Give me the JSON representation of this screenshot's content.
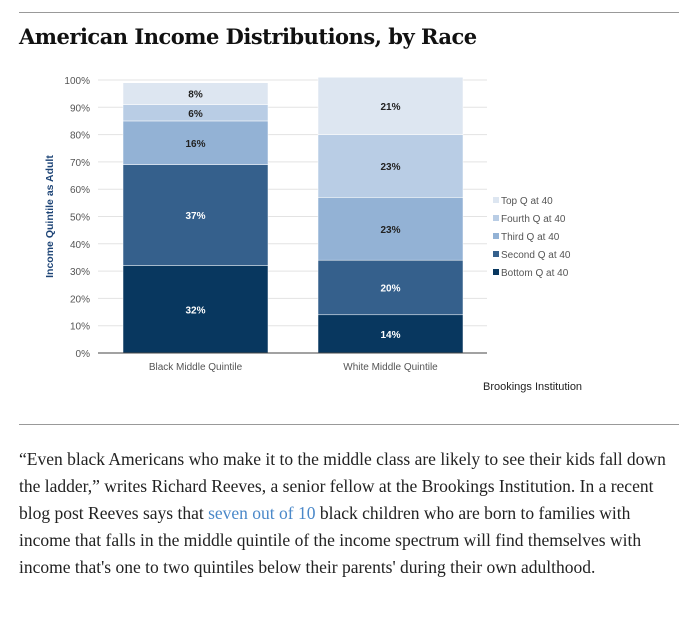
{
  "title": "American Income Distributions, by Race",
  "chart_data": {
    "type": "bar",
    "stacked": true,
    "ylabel": "Income Quintile as Adult",
    "ylim": [
      0,
      100
    ],
    "yticks": [
      "0%",
      "10%",
      "20%",
      "30%",
      "40%",
      "50%",
      "60%",
      "70%",
      "80%",
      "90%",
      "100%"
    ],
    "categories": [
      "Black Middle Quintile",
      "White Middle Quintile"
    ],
    "series": [
      {
        "name": "Bottom Q at 40",
        "color": "#08375f",
        "values": [
          32,
          14
        ],
        "labels": [
          "32%",
          "14%"
        ]
      },
      {
        "name": "Second Q at 40",
        "color": "#35608c",
        "values": [
          37,
          20
        ],
        "labels": [
          "37%",
          "20%"
        ]
      },
      {
        "name": "Third Q at 40",
        "color": "#93b2d5",
        "values": [
          16,
          23
        ],
        "labels": [
          "16%",
          "23%"
        ]
      },
      {
        "name": "Fourth Q at 40",
        "color": "#b9cde5",
        "values": [
          6,
          23
        ],
        "labels": [
          "6%",
          "23%"
        ]
      },
      {
        "name": "Top Q at 40",
        "color": "#dde6f1",
        "values": [
          8,
          21
        ],
        "labels": [
          "8%",
          "21%"
        ]
      }
    ],
    "legend": "right",
    "grid": true,
    "source": "Brookings Institution"
  },
  "article": {
    "before_link": "“Even black Americans who make it to the middle class are likely to see their kids fall down the ladder,” writes Richard Reeves, a senior fellow at the Brookings Institution. In a recent blog post Reeves says that ",
    "link": "seven out of 10",
    "after_link": " black children who are born to families with income that falls in the middle quintile of the income spectrum will find themselves with income that's one to two quintiles below their parents' during their own adulthood."
  }
}
